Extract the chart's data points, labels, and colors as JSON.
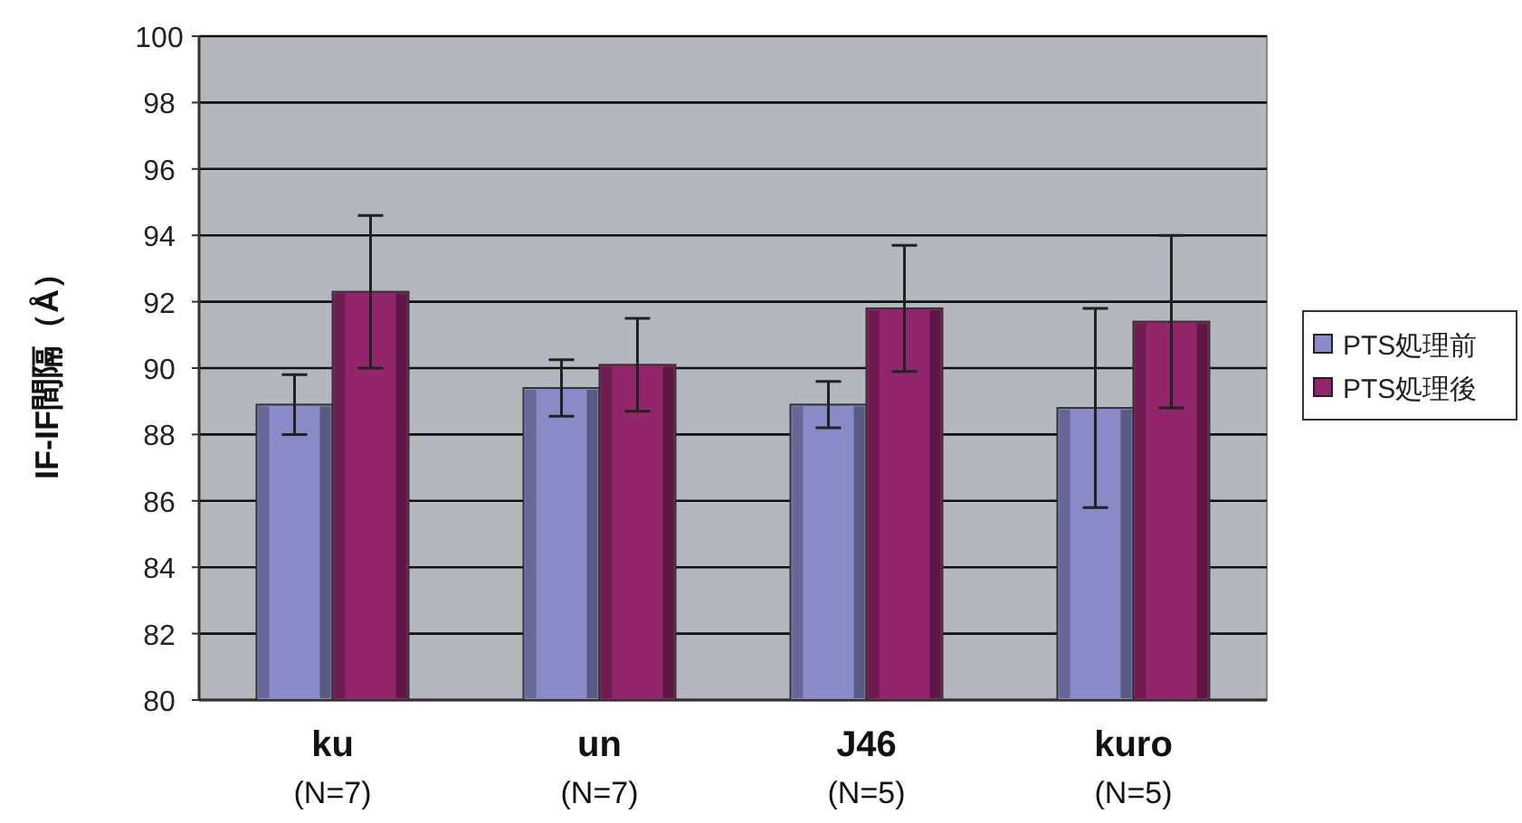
{
  "chart_data": {
    "type": "bar",
    "ylabel": "IF-IF間隔（Å）",
    "categories": [
      "ku (N=7)",
      "un (N=7)",
      "J46 (N=5)",
      "kuro (N=5)"
    ],
    "series": [
      {
        "name": "PTS処理前",
        "color": "#8a8ac8",
        "values": [
          88.9,
          89.4,
          88.9,
          88.8
        ],
        "errors": [
          0.9,
          0.85,
          0.7,
          3.0
        ]
      },
      {
        "name": "PTS処理後",
        "color": "#93266a",
        "values": [
          92.3,
          90.1,
          91.8,
          91.4
        ],
        "errors": [
          2.3,
          1.4,
          1.9,
          2.6
        ]
      }
    ],
    "ylim": [
      80,
      100
    ],
    "yticks": [
      80,
      82,
      84,
      86,
      88,
      90,
      92,
      94,
      96,
      98,
      100
    ],
    "grid": "y",
    "legend": "right"
  }
}
